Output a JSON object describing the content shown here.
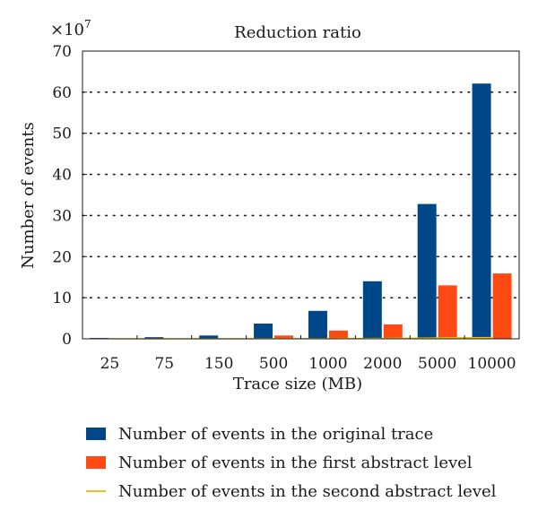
{
  "chart_data": {
    "type": "bar",
    "title": "Reduction ratio",
    "xlabel": "Trace size (MB)",
    "ylabel": "Number of events",
    "y_multiplier_label": "×10",
    "y_multiplier_exp": "7",
    "ylim": [
      0,
      70
    ],
    "yticks": [
      0,
      10,
      20,
      30,
      40,
      50,
      60,
      70
    ],
    "grid": "horizontal-dotted",
    "categories": [
      "25",
      "75",
      "150",
      "500",
      "1000",
      "2000",
      "5000",
      "10000"
    ],
    "series": [
      {
        "name": "Number of events in the original trace",
        "type": "bar",
        "color": "#00478a",
        "values": [
          0.2,
          0.4,
          0.8,
          3.7,
          6.8,
          14.0,
          32.8,
          62.1
        ]
      },
      {
        "name": "Number of events in the first abstract level",
        "type": "bar",
        "color": "#ff4a14",
        "values": [
          0.02,
          0.05,
          0.1,
          0.8,
          2.0,
          3.5,
          13.0,
          15.9
        ]
      },
      {
        "name": "Number of events in the second abstract level",
        "type": "line",
        "color": "#e8c31c",
        "values": [
          0.0,
          0.0,
          0.0,
          0.02,
          0.04,
          0.08,
          0.2,
          0.3
        ]
      }
    ]
  }
}
